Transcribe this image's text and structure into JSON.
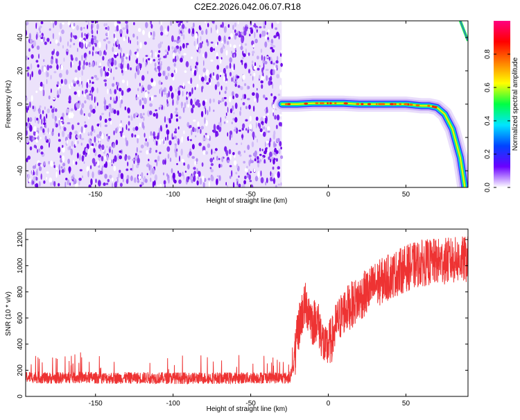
{
  "title": "C2E2.2026.042.06.07.R18",
  "chart_data": [
    {
      "type": "heatmap",
      "title": "C2E2.2026.042.06.07.R18",
      "xlabel": "Height of straight line (km)",
      "ylabel": "Frequency (Hz)",
      "xlim": [
        -195,
        90
      ],
      "ylim": [
        -50,
        50
      ],
      "xticks": [
        -150,
        -100,
        -50,
        0,
        50
      ],
      "yticks": [
        -40,
        -20,
        0,
        20,
        40
      ],
      "noise_region_x": [
        -195,
        -30
      ],
      "signal_track": {
        "x": [
          -30,
          -20,
          -10,
          0,
          10,
          20,
          30,
          40,
          50,
          60,
          65,
          70,
          75,
          80,
          85,
          88
        ],
        "frequency": [
          0,
          0,
          0.5,
          0.5,
          0.5,
          0,
          0,
          0,
          0,
          -1,
          -1,
          -2,
          -6,
          -15,
          -32,
          -50
        ]
      },
      "colorbar": {
        "label": "Normalized spectral amplitude",
        "range": [
          0.0,
          1.0
        ],
        "ticks": [
          "0.0",
          "0.2",
          "0.4",
          "0.6",
          "0.8"
        ],
        "colors": [
          "#ffffff",
          "#6a00ff",
          "#0044ff",
          "#00e5ff",
          "#00ff44",
          "#ffff00",
          "#ff7f00",
          "#ff0000",
          "#ff0080"
        ]
      },
      "grid": false
    },
    {
      "type": "line",
      "xlabel": "Height of straight line (km)",
      "ylabel": "SNR (10 * v/v)",
      "xlim": [
        -195,
        90
      ],
      "ylim": [
        0,
        1280
      ],
      "xticks": [
        -150,
        -100,
        -50,
        0,
        50
      ],
      "yticks": [
        0,
        200,
        400,
        600,
        800,
        1000,
        1200
      ],
      "color": "#ee3333",
      "series": [
        {
          "x": [
            -195,
            -180,
            -160,
            -140,
            -120,
            -100,
            -80,
            -60,
            -40,
            -25,
            -22,
            -20,
            -18,
            -15,
            -12,
            -10,
            -8,
            -5,
            -2,
            0,
            3,
            5,
            10,
            15,
            20,
            25,
            30,
            40,
            50,
            60,
            70,
            80,
            90
          ],
          "values": [
            150,
            140,
            145,
            140,
            142,
            140,
            140,
            140,
            145,
            140,
            250,
            450,
            600,
            700,
            650,
            550,
            600,
            500,
            350,
            400,
            450,
            550,
            650,
            700,
            750,
            800,
            850,
            920,
            980,
            1020,
            1030,
            1040,
            1050
          ]
        }
      ],
      "grid": false
    }
  ]
}
